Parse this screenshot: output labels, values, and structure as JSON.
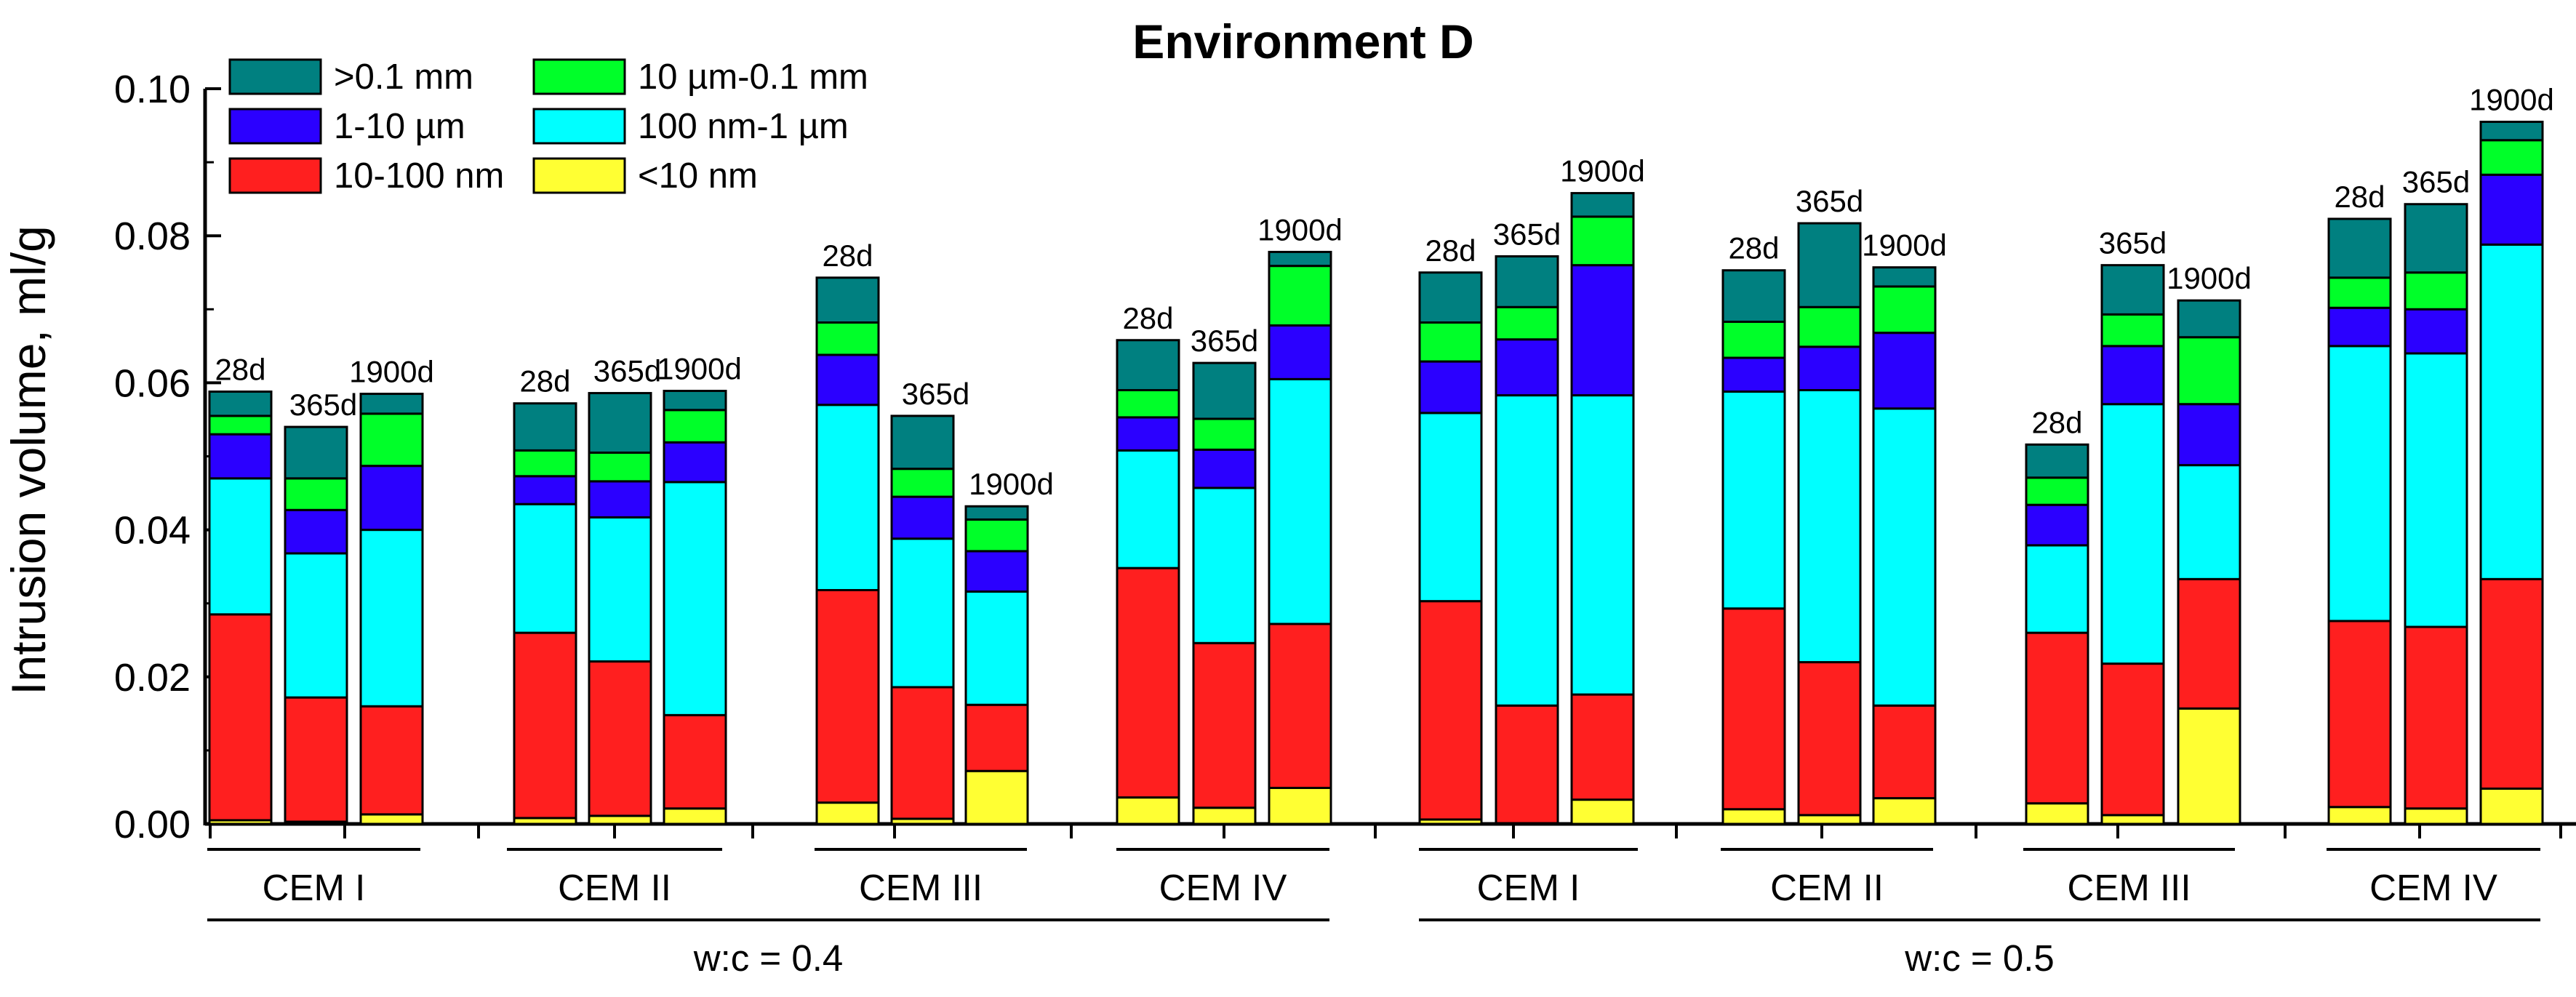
{
  "chart_data": {
    "type": "bar",
    "subtype": "stacked",
    "title": "Environment D",
    "xlabel": "",
    "ylabel": "Intrusion volume, ml/g",
    "ylim": [
      0,
      0.1
    ],
    "yticks": [
      "0.00",
      "0.02",
      "0.04",
      "0.06",
      "0.08",
      "0.10"
    ],
    "grid": false,
    "legend_position": "top-left",
    "series": [
      {
        "name": "<10 nm",
        "color": "#ffff33"
      },
      {
        "name": "10-100 nm",
        "color": "#ff1f1f"
      },
      {
        "name": "100 nm-1 µm",
        "color": "#00ffff"
      },
      {
        "name": "1-10 µm",
        "color": "#2b00ff"
      },
      {
        "name": "10 µm-0.1 mm",
        "color": "#00ff29"
      },
      {
        "name": ">0.1 mm",
        "color": "#008080"
      }
    ],
    "legend_order": [
      ">0.1 mm",
      "10 µm-0.1 mm",
      "1-10 µm",
      "100 nm-1 µm",
      "10-100 nm",
      "<10 nm"
    ],
    "groups": [
      {
        "wc": "w:c = 0.4",
        "cement": "CEM I",
        "bars": [
          {
            "period": "28d",
            "stack": [
              0.0005,
              0.0285,
              0.047,
              0.053,
              0.0555,
              0.0588
            ]
          },
          {
            "period": "365d",
            "stack": [
              0.0003,
              0.0172,
              0.0368,
              0.0427,
              0.047,
              0.054
            ]
          },
          {
            "period": "1900d",
            "stack": [
              0.0013,
              0.016,
              0.04,
              0.0487,
              0.0558,
              0.0585
            ]
          }
        ]
      },
      {
        "wc": "w:c = 0.4",
        "cement": "CEM II",
        "bars": [
          {
            "period": "28d",
            "stack": [
              0.0008,
              0.026,
              0.0435,
              0.0473,
              0.0508,
              0.0572
            ]
          },
          {
            "period": "365d",
            "stack": [
              0.0011,
              0.0221,
              0.0417,
              0.0466,
              0.0505,
              0.0586
            ]
          },
          {
            "period": "1900d",
            "stack": [
              0.0021,
              0.0148,
              0.0465,
              0.0519,
              0.0563,
              0.0589
            ]
          }
        ]
      },
      {
        "wc": "w:c = 0.4",
        "cement": "CEM III",
        "bars": [
          {
            "period": "28d",
            "stack": [
              0.0029,
              0.0318,
              0.057,
              0.0638,
              0.0682,
              0.0743
            ]
          },
          {
            "period": "365d",
            "stack": [
              0.0007,
              0.0186,
              0.0388,
              0.0445,
              0.0483,
              0.0555
            ]
          },
          {
            "period": "1900d",
            "stack": [
              0.0072,
              0.0162,
              0.0316,
              0.0371,
              0.0414,
              0.0432
            ]
          }
        ]
      },
      {
        "wc": "w:c = 0.4",
        "cement": "CEM IV",
        "bars": [
          {
            "period": "28d",
            "stack": [
              0.0036,
              0.0348,
              0.0508,
              0.0553,
              0.059,
              0.0658
            ]
          },
          {
            "period": "365d",
            "stack": [
              0.0022,
              0.0246,
              0.0457,
              0.0509,
              0.0551,
              0.0627
            ]
          },
          {
            "period": "1900d",
            "stack": [
              0.0049,
              0.0272,
              0.0605,
              0.0678,
              0.0759,
              0.0778
            ]
          }
        ]
      },
      {
        "wc": "w:c = 0.5",
        "cement": "CEM I",
        "bars": [
          {
            "period": "28d",
            "stack": [
              0.0006,
              0.0303,
              0.0559,
              0.0629,
              0.0682,
              0.075
            ]
          },
          {
            "period": "365d",
            "stack": [
              0.0001,
              0.0161,
              0.0583,
              0.0659,
              0.0703,
              0.0772
            ]
          },
          {
            "period": "1900d",
            "stack": [
              0.0033,
              0.0176,
              0.0583,
              0.076,
              0.0826,
              0.0858
            ]
          }
        ]
      },
      {
        "wc": "w:c = 0.5",
        "cement": "CEM II",
        "bars": [
          {
            "period": "28d",
            "stack": [
              0.002,
              0.0293,
              0.0588,
              0.0634,
              0.0683,
              0.0753
            ]
          },
          {
            "period": "365d",
            "stack": [
              0.0012,
              0.022,
              0.059,
              0.0649,
              0.0703,
              0.0817
            ]
          },
          {
            "period": "1900d",
            "stack": [
              0.0035,
              0.0161,
              0.0565,
              0.0668,
              0.0731,
              0.0757
            ]
          }
        ]
      },
      {
        "wc": "w:c = 0.5",
        "cement": "CEM III",
        "bars": [
          {
            "period": "28d",
            "stack": [
              0.0028,
              0.026,
              0.0379,
              0.0434,
              0.0471,
              0.0516
            ]
          },
          {
            "period": "365d",
            "stack": [
              0.0012,
              0.0218,
              0.0571,
              0.065,
              0.0693,
              0.076
            ]
          },
          {
            "period": "1900d",
            "stack": [
              0.0157,
              0.0333,
              0.0488,
              0.0571,
              0.0662,
              0.0712
            ]
          }
        ]
      },
      {
        "wc": "w:c = 0.5",
        "cement": "CEM IV",
        "bars": [
          {
            "period": "28d",
            "stack": [
              0.0023,
              0.0276,
              0.065,
              0.0702,
              0.0743,
              0.0823
            ]
          },
          {
            "period": "365d",
            "stack": [
              0.0021,
              0.0268,
              0.064,
              0.07,
              0.075,
              0.0843
            ]
          },
          {
            "period": "1900d",
            "stack": [
              0.0048,
              0.0333,
              0.0788,
              0.0883,
              0.093,
              0.0955
            ]
          }
        ]
      }
    ],
    "wc_groups": [
      "w:c = 0.4",
      "w:c = 0.5"
    ]
  }
}
